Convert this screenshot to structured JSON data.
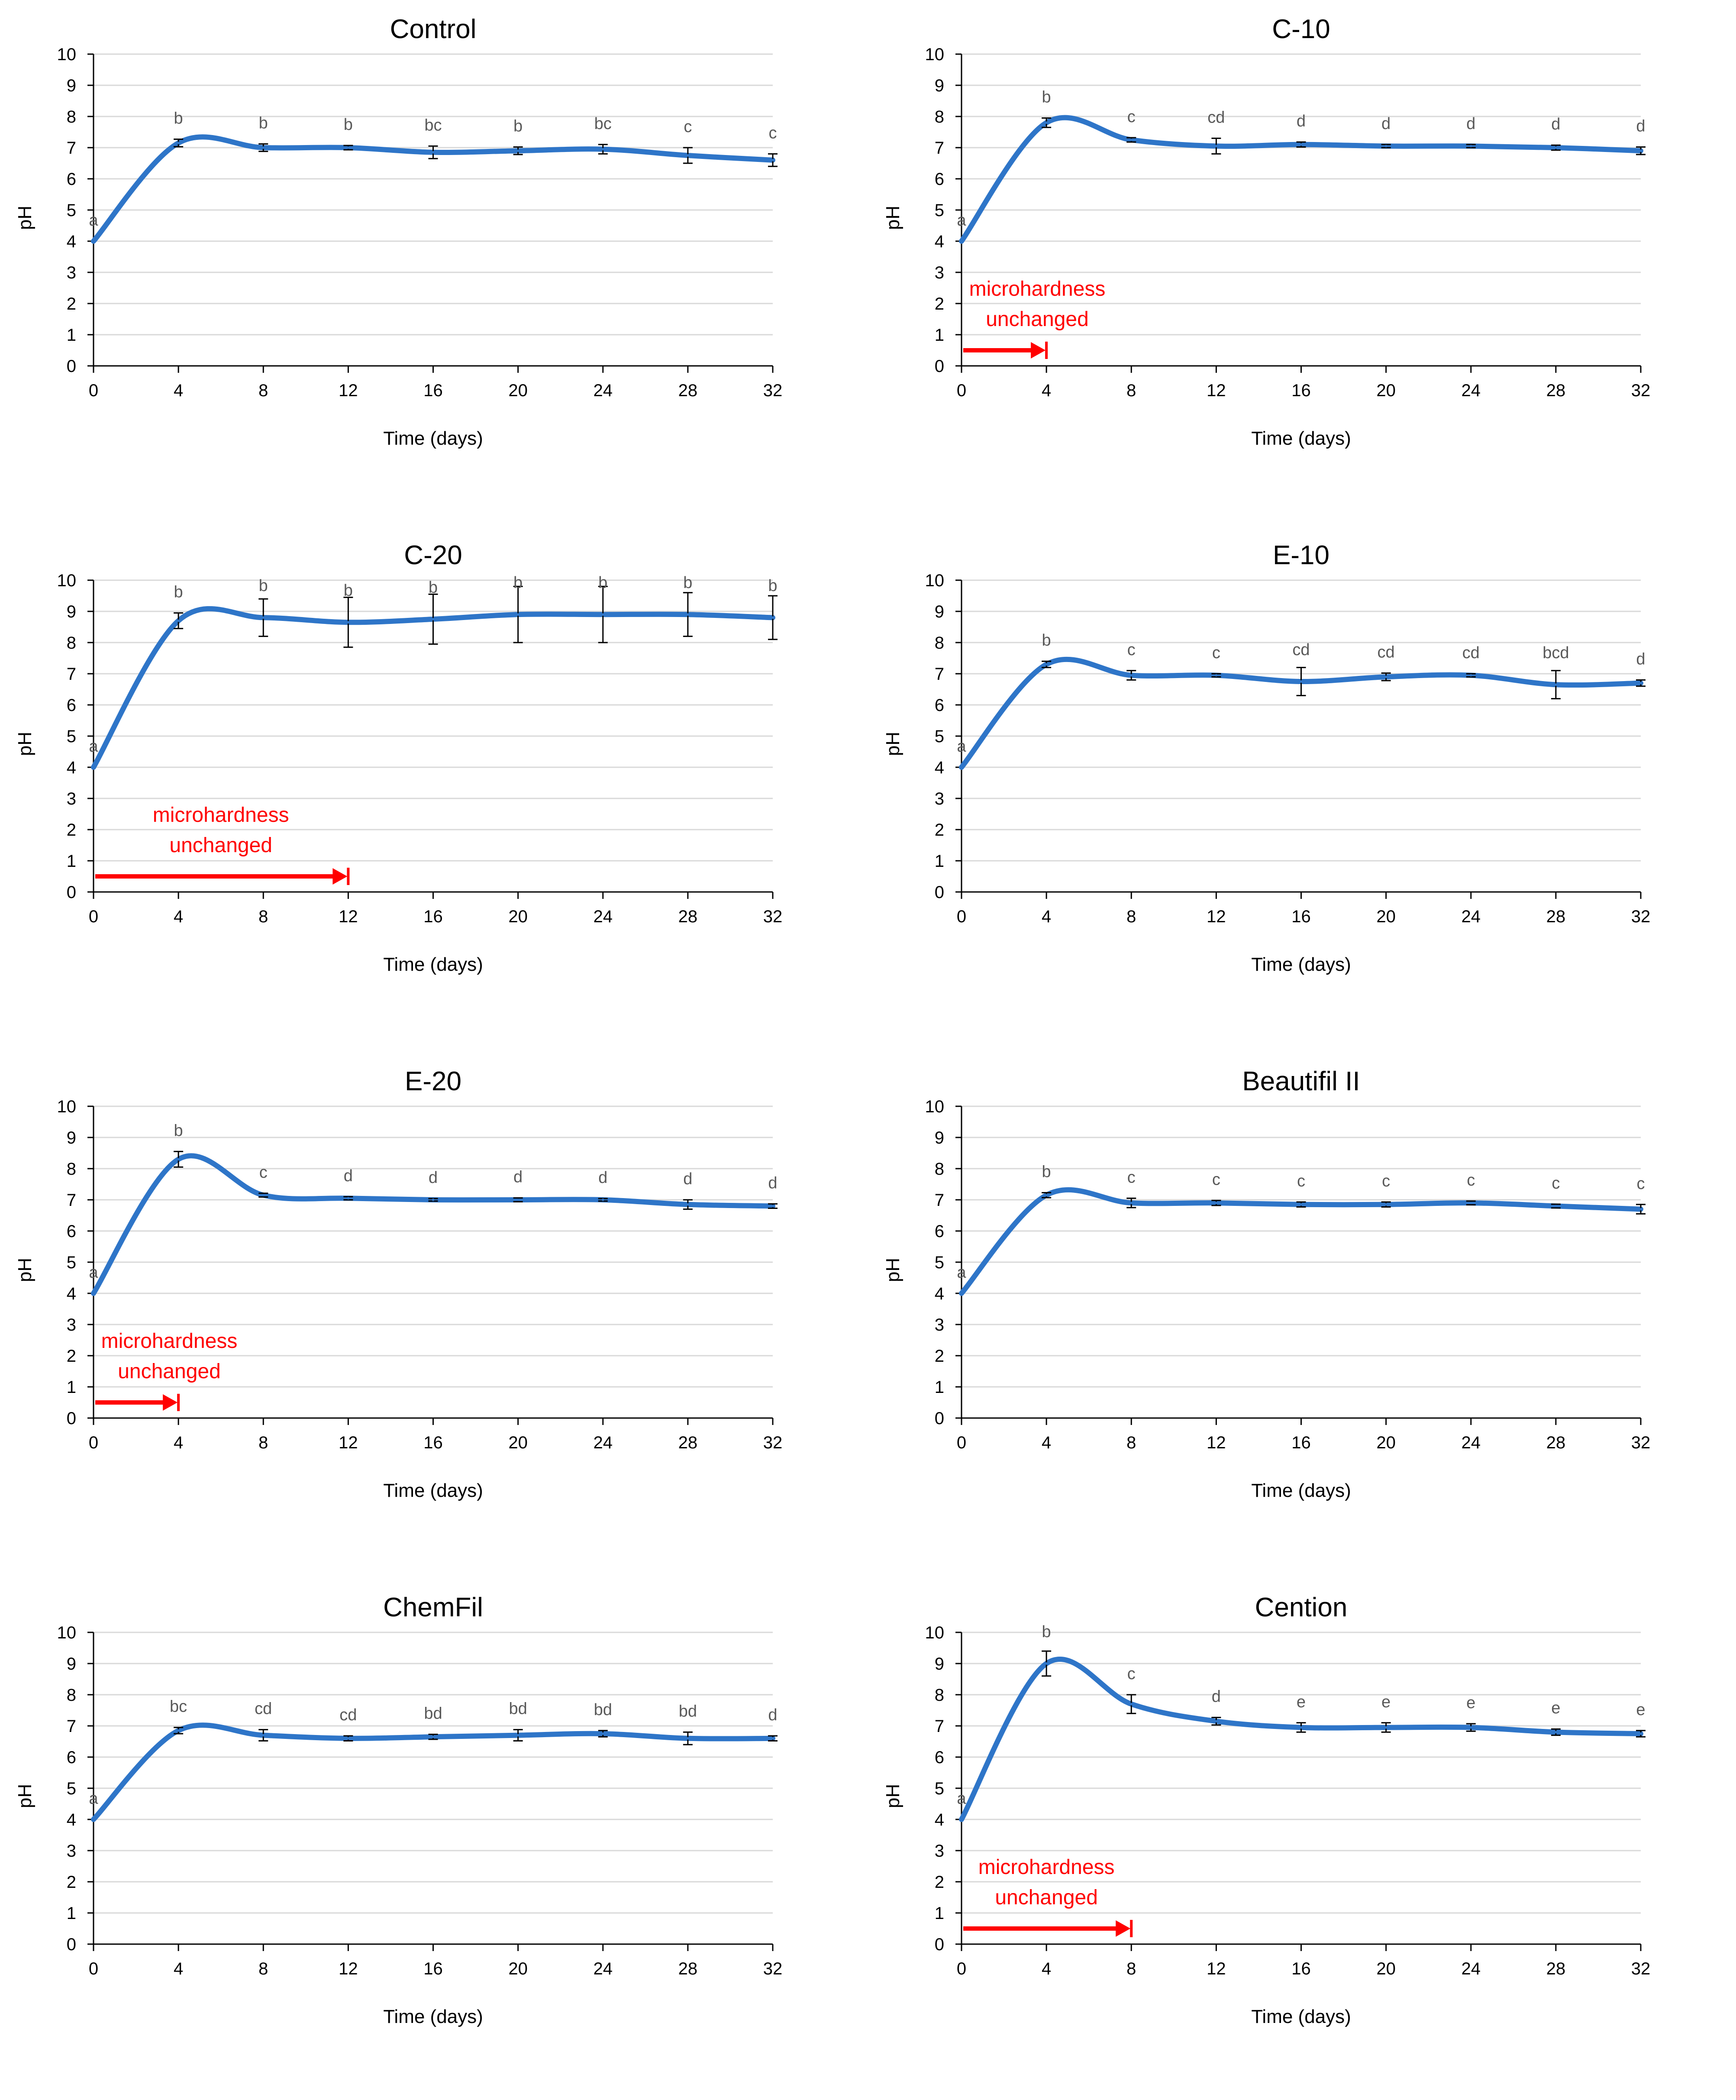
{
  "chart_data": [
    {
      "type": "line",
      "title": "Control",
      "xlabel": "Time (days)",
      "ylabel": "pH",
      "xlim": [
        0,
        32
      ],
      "ylim": [
        0,
        10
      ],
      "x_ticks": [
        0,
        4,
        8,
        12,
        16,
        20,
        24,
        28,
        32
      ],
      "y_ticks": [
        0,
        1,
        2,
        3,
        4,
        5,
        6,
        7,
        8,
        9,
        10
      ],
      "grid": true,
      "line_color": "#2e75c8",
      "x": [
        0,
        4,
        8,
        12,
        16,
        20,
        24,
        28,
        32
      ],
      "y": [
        4.0,
        7.15,
        7.0,
        7.0,
        6.85,
        6.9,
        6.95,
        6.75,
        6.6
      ],
      "error": [
        0,
        0.12,
        0.12,
        0.07,
        0.2,
        0.12,
        0.15,
        0.25,
        0.2
      ],
      "significance_labels": [
        "a",
        "b",
        "b",
        "b",
        "bc",
        "b",
        "bc",
        "c",
        "c"
      ]
    },
    {
      "type": "line",
      "title": "C-10",
      "xlabel": "Time (days)",
      "ylabel": "pH",
      "xlim": [
        0,
        32
      ],
      "ylim": [
        0,
        10
      ],
      "x_ticks": [
        0,
        4,
        8,
        12,
        16,
        20,
        24,
        28,
        32
      ],
      "y_ticks": [
        0,
        1,
        2,
        3,
        4,
        5,
        6,
        7,
        8,
        9,
        10
      ],
      "grid": true,
      "line_color": "#2e75c8",
      "x": [
        0,
        4,
        8,
        12,
        16,
        20,
        24,
        28,
        32
      ],
      "y": [
        4.0,
        7.8,
        7.25,
        7.05,
        7.1,
        7.05,
        7.05,
        7.0,
        6.9
      ],
      "error": [
        0,
        0.15,
        0.07,
        0.25,
        0.08,
        0.05,
        0.05,
        0.08,
        0.12
      ],
      "significance_labels": [
        "a",
        "b",
        "c",
        "cd",
        "d",
        "d",
        "d",
        "d",
        "d"
      ],
      "annotation": {
        "text_lines": [
          "microhardness",
          "unchanged"
        ],
        "from_x": 0,
        "to_x": 4,
        "color": "#ff0000"
      }
    },
    {
      "type": "line",
      "title": "C-20",
      "xlabel": "Time (days)",
      "ylabel": "pH",
      "xlim": [
        0,
        32
      ],
      "ylim": [
        0,
        10
      ],
      "x_ticks": [
        0,
        4,
        8,
        12,
        16,
        20,
        24,
        28,
        32
      ],
      "y_ticks": [
        0,
        1,
        2,
        3,
        4,
        5,
        6,
        7,
        8,
        9,
        10
      ],
      "grid": true,
      "line_color": "#2e75c8",
      "x": [
        0,
        4,
        8,
        12,
        16,
        20,
        24,
        28,
        32
      ],
      "y": [
        4.0,
        8.7,
        8.8,
        8.65,
        8.75,
        8.9,
        8.9,
        8.9,
        8.8
      ],
      "error": [
        0,
        0.25,
        0.6,
        0.8,
        0.8,
        0.9,
        0.9,
        0.7,
        0.7
      ],
      "significance_labels": [
        "a",
        "b",
        "b",
        "b",
        "b",
        "b",
        "b",
        "b",
        "b"
      ],
      "annotation": {
        "text_lines": [
          "microhardness",
          "unchanged"
        ],
        "from_x": 0,
        "to_x": 12,
        "color": "#ff0000"
      }
    },
    {
      "type": "line",
      "title": "E-10",
      "xlabel": "Time (days)",
      "ylabel": "pH",
      "xlim": [
        0,
        32
      ],
      "ylim": [
        0,
        10
      ],
      "x_ticks": [
        0,
        4,
        8,
        12,
        16,
        20,
        24,
        28,
        32
      ],
      "y_ticks": [
        0,
        1,
        2,
        3,
        4,
        5,
        6,
        7,
        8,
        9,
        10
      ],
      "grid": true,
      "line_color": "#2e75c8",
      "x": [
        0,
        4,
        8,
        12,
        16,
        20,
        24,
        28,
        32
      ],
      "y": [
        4.0,
        7.3,
        6.95,
        6.95,
        6.75,
        6.9,
        6.95,
        6.65,
        6.7
      ],
      "error": [
        0,
        0.1,
        0.15,
        0.05,
        0.45,
        0.12,
        0.05,
        0.45,
        0.1
      ],
      "significance_labels": [
        "a",
        "b",
        "c",
        "c",
        "cd",
        "cd",
        "cd",
        "bcd",
        "d"
      ]
    },
    {
      "type": "line",
      "title": "E-20",
      "xlabel": "Time (days)",
      "ylabel": "pH",
      "xlim": [
        0,
        32
      ],
      "ylim": [
        0,
        10
      ],
      "x_ticks": [
        0,
        4,
        8,
        12,
        16,
        20,
        24,
        28,
        32
      ],
      "y_ticks": [
        0,
        1,
        2,
        3,
        4,
        5,
        6,
        7,
        8,
        9,
        10
      ],
      "grid": true,
      "line_color": "#2e75c8",
      "x": [
        0,
        4,
        8,
        12,
        16,
        20,
        24,
        28,
        32
      ],
      "y": [
        4.0,
        8.3,
        7.15,
        7.05,
        7.0,
        7.0,
        7.0,
        6.85,
        6.8
      ],
      "error": [
        0,
        0.25,
        0.06,
        0.05,
        0.04,
        0.06,
        0.04,
        0.15,
        0.07
      ],
      "significance_labels": [
        "a",
        "b",
        "c",
        "d",
        "d",
        "d",
        "d",
        "d",
        "d"
      ],
      "annotation": {
        "text_lines": [
          "microhardness",
          "unchanged"
        ],
        "from_x": 0,
        "to_x": 4,
        "color": "#ff0000"
      }
    },
    {
      "type": "line",
      "title": "Beautifil II",
      "xlabel": "Time (days)",
      "ylabel": "pH",
      "xlim": [
        0,
        32
      ],
      "ylim": [
        0,
        10
      ],
      "x_ticks": [
        0,
        4,
        8,
        12,
        16,
        20,
        24,
        28,
        32
      ],
      "y_ticks": [
        0,
        1,
        2,
        3,
        4,
        5,
        6,
        7,
        8,
        9,
        10
      ],
      "grid": true,
      "line_color": "#2e75c8",
      "x": [
        0,
        4,
        8,
        12,
        16,
        20,
        24,
        28,
        32
      ],
      "y": [
        4.0,
        7.15,
        6.9,
        6.9,
        6.85,
        6.85,
        6.9,
        6.8,
        6.7
      ],
      "error": [
        0,
        0.08,
        0.15,
        0.08,
        0.08,
        0.08,
        0.06,
        0.06,
        0.15
      ],
      "significance_labels": [
        "a",
        "b",
        "c",
        "c",
        "c",
        "c",
        "c",
        "c",
        "c"
      ]
    },
    {
      "type": "line",
      "title": "ChemFil",
      "xlabel": "Time (days)",
      "ylabel": "pH",
      "xlim": [
        0,
        32
      ],
      "ylim": [
        0,
        10
      ],
      "x_ticks": [
        0,
        4,
        8,
        12,
        16,
        20,
        24,
        28,
        32
      ],
      "y_ticks": [
        0,
        1,
        2,
        3,
        4,
        5,
        6,
        7,
        8,
        9,
        10
      ],
      "grid": true,
      "line_color": "#2e75c8",
      "x": [
        0,
        4,
        8,
        12,
        16,
        20,
        24,
        28,
        32
      ],
      "y": [
        4.0,
        6.85,
        6.7,
        6.6,
        6.65,
        6.7,
        6.75,
        6.6,
        6.6
      ],
      "error": [
        0,
        0.1,
        0.18,
        0.08,
        0.08,
        0.18,
        0.1,
        0.2,
        0.08
      ],
      "significance_labels": [
        "a",
        "bc",
        "cd",
        "cd",
        "bd",
        "bd",
        "bd",
        "bd",
        "d"
      ]
    },
    {
      "type": "line",
      "title": "Cention",
      "xlabel": "Time (days)",
      "ylabel": "pH",
      "xlim": [
        0,
        32
      ],
      "ylim": [
        0,
        10
      ],
      "x_ticks": [
        0,
        4,
        8,
        12,
        16,
        20,
        24,
        28,
        32
      ],
      "y_ticks": [
        0,
        1,
        2,
        3,
        4,
        5,
        6,
        7,
        8,
        9,
        10
      ],
      "grid": true,
      "line_color": "#2e75c8",
      "x": [
        0,
        4,
        8,
        12,
        16,
        20,
        24,
        28,
        32
      ],
      "y": [
        4.0,
        9.0,
        7.7,
        7.15,
        6.95,
        6.95,
        6.95,
        6.8,
        6.75
      ],
      "error": [
        0,
        0.4,
        0.3,
        0.12,
        0.15,
        0.15,
        0.12,
        0.1,
        0.1
      ],
      "significance_labels": [
        "a",
        "b",
        "c",
        "d",
        "e",
        "e",
        "e",
        "e",
        "e"
      ],
      "annotation": {
        "text_lines": [
          "microhardness",
          "unchanged"
        ],
        "from_x": 0,
        "to_x": 8,
        "color": "#ff0000"
      }
    }
  ]
}
